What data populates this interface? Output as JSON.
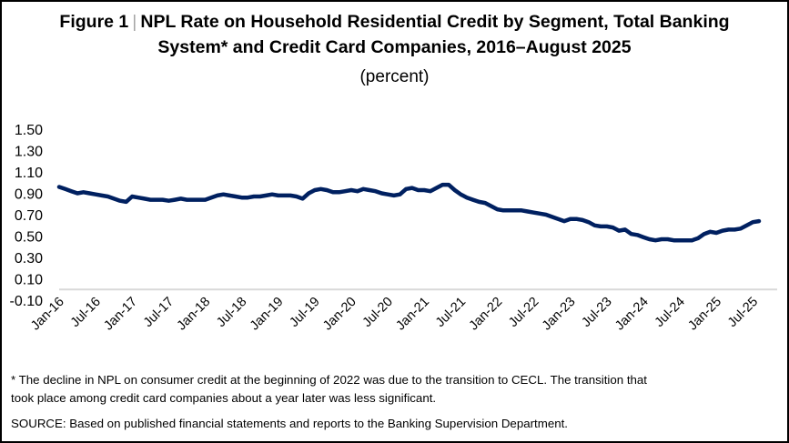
{
  "figure": {
    "label": "Figure 1",
    "separator": "|",
    "title_line1": "NPL Rate on Household Residential Credit by Segment, Total Banking",
    "title_line2": "System* and Credit Card Companies, 2016–August 2025",
    "subtitle": "(percent)"
  },
  "chart_data": {
    "type": "line",
    "title": "NPL Rate on Household Residential Credit by Segment, Total Banking System* and Credit Card Companies, 2016–August 2025",
    "subtitle": "(percent)",
    "xlabel": "",
    "ylabel": "percent",
    "ylim": [
      -0.1,
      1.5
    ],
    "yticks": [
      "1.50",
      "1.30",
      "1.10",
      "0.90",
      "0.70",
      "0.50",
      "0.30",
      "0.10",
      "-0.10"
    ],
    "ytick_values": [
      1.5,
      1.3,
      1.1,
      0.9,
      0.7,
      0.5,
      0.3,
      0.1,
      -0.1
    ],
    "xticks": [
      "Jan-16",
      "Jul-16",
      "Jan-17",
      "Jul-17",
      "Jan-18",
      "Jul-18",
      "Jan-19",
      "Jul-19",
      "Jan-20",
      "Jul-20",
      "Jan-21",
      "Jul-21",
      "Jan-22",
      "Jul-22",
      "Jan-23",
      "Jul-23",
      "Jan-24",
      "Jul-24",
      "Jan-25",
      "Jul-25"
    ],
    "x_start": "Jan-16",
    "x_end": "Aug-25",
    "grid": false,
    "zero_line": true,
    "legend": "none",
    "series": [
      {
        "name": "NPL rate",
        "color": "#002060",
        "frequency": "monthly",
        "values": [
          0.96,
          0.94,
          0.92,
          0.9,
          0.91,
          0.9,
          0.89,
          0.88,
          0.87,
          0.85,
          0.83,
          0.82,
          0.87,
          0.86,
          0.85,
          0.84,
          0.84,
          0.84,
          0.83,
          0.84,
          0.85,
          0.84,
          0.84,
          0.84,
          0.84,
          0.86,
          0.88,
          0.89,
          0.88,
          0.87,
          0.86,
          0.86,
          0.87,
          0.87,
          0.88,
          0.89,
          0.88,
          0.88,
          0.88,
          0.87,
          0.85,
          0.9,
          0.93,
          0.94,
          0.93,
          0.91,
          0.91,
          0.92,
          0.93,
          0.92,
          0.94,
          0.93,
          0.92,
          0.9,
          0.89,
          0.88,
          0.89,
          0.94,
          0.95,
          0.93,
          0.93,
          0.92,
          0.95,
          0.98,
          0.98,
          0.93,
          0.89,
          0.86,
          0.84,
          0.82,
          0.81,
          0.78,
          0.75,
          0.74,
          0.74,
          0.74,
          0.74,
          0.73,
          0.72,
          0.71,
          0.7,
          0.68,
          0.66,
          0.64,
          0.66,
          0.66,
          0.65,
          0.63,
          0.6,
          0.59,
          0.59,
          0.58,
          0.55,
          0.56,
          0.52,
          0.51,
          0.49,
          0.47,
          0.46,
          0.47,
          0.47,
          0.46,
          0.46,
          0.46,
          0.46,
          0.48,
          0.52,
          0.54,
          0.53,
          0.55,
          0.56,
          0.56,
          0.57,
          0.6,
          0.63,
          0.64
        ]
      }
    ]
  },
  "footnotes": {
    "note_line1": "* The decline in NPL on consumer credit at the beginning of 2022 was due to the transition to CECL.  The transition that",
    "note_line2": "took place among credit card companies about a year later was less significant.",
    "source": "SOURCE: Based on published financial statements and reports to the Banking Supervision Department."
  }
}
